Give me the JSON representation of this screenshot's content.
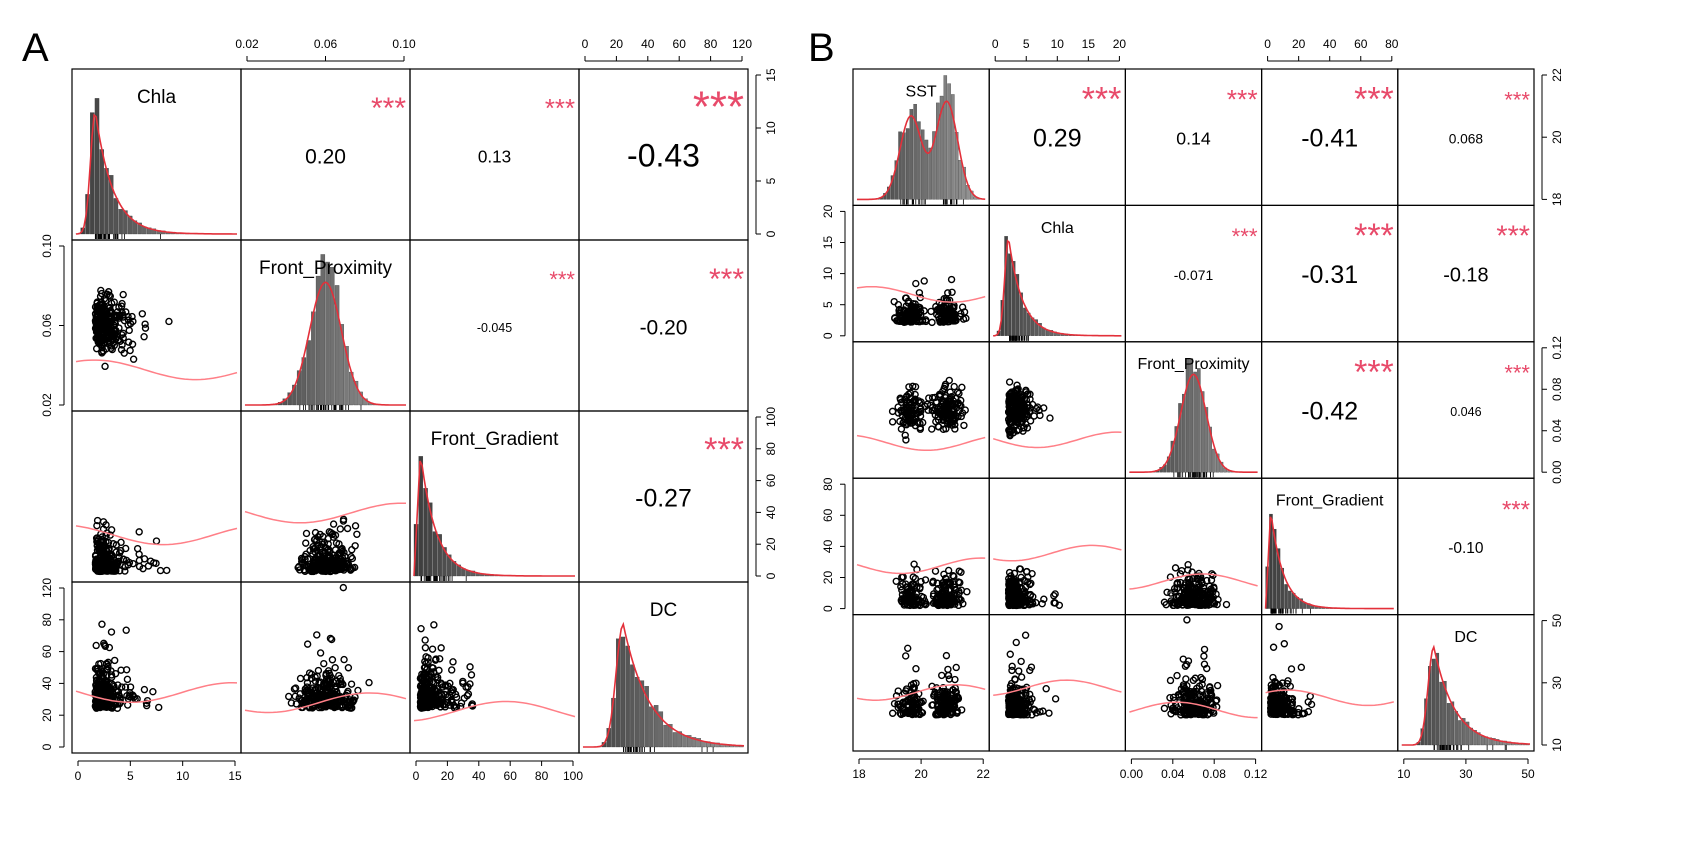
{
  "panels": [
    {
      "letter": "A",
      "variables": [
        "Chla",
        "Front_Proximity",
        "Front_Gradient",
        "DC"
      ],
      "correlations": [
        {
          "row": 0,
          "col": 1,
          "value": "0.20",
          "stars": "***"
        },
        {
          "row": 0,
          "col": 2,
          "value": "0.13",
          "stars": "***"
        },
        {
          "row": 0,
          "col": 3,
          "value": "-0.43",
          "stars": "***"
        },
        {
          "row": 1,
          "col": 2,
          "value": "-0.045",
          "stars": "***"
        },
        {
          "row": 1,
          "col": 3,
          "value": "-0.20",
          "stars": "***"
        },
        {
          "row": 2,
          "col": 3,
          "value": "-0.27",
          "stars": "***"
        }
      ],
      "top_axes": [
        {
          "col": 1,
          "ticks": [
            "0.02",
            "0.06",
            "0.10"
          ]
        },
        {
          "col": 3,
          "ticks": [
            "0",
            "20",
            "40",
            "60",
            "80",
            "120"
          ]
        }
      ],
      "bottom_axes": [
        {
          "col": 0,
          "ticks": [
            "0",
            "5",
            "10",
            "15"
          ]
        },
        {
          "col": 2,
          "ticks": [
            "0",
            "20",
            "40",
            "60",
            "80",
            "100"
          ]
        }
      ],
      "left_axes": [
        {
          "row": 1,
          "ticks": [
            "0.02",
            "0.06",
            "0.10"
          ]
        },
        {
          "row": 3,
          "ticks": [
            "0",
            "20",
            "40",
            "60",
            "80",
            "120"
          ]
        }
      ],
      "right_axes": [
        {
          "row": 0,
          "ticks": [
            "0",
            "5",
            "10",
            "15"
          ]
        },
        {
          "row": 2,
          "ticks": [
            "0",
            "20",
            "40",
            "60",
            "80",
            "100"
          ]
        }
      ]
    },
    {
      "letter": "B",
      "variables": [
        "SST",
        "Chla",
        "Front_Proximity",
        "Front_Gradient",
        "DC"
      ],
      "correlations": [
        {
          "row": 0,
          "col": 1,
          "value": "0.29",
          "stars": "***"
        },
        {
          "row": 0,
          "col": 2,
          "value": "0.14",
          "stars": "***"
        },
        {
          "row": 0,
          "col": 3,
          "value": "-0.41",
          "stars": "***"
        },
        {
          "row": 0,
          "col": 4,
          "value": "0.068",
          "stars": "***"
        },
        {
          "row": 1,
          "col": 2,
          "value": "-0.071",
          "stars": "***"
        },
        {
          "row": 1,
          "col": 3,
          "value": "-0.31",
          "stars": "***"
        },
        {
          "row": 1,
          "col": 4,
          "value": "-0.18",
          "stars": "***"
        },
        {
          "row": 2,
          "col": 3,
          "value": "-0.42",
          "stars": "***"
        },
        {
          "row": 2,
          "col": 4,
          "value": "0.046",
          "stars": "***"
        },
        {
          "row": 3,
          "col": 4,
          "value": "-0.10",
          "stars": "***"
        }
      ],
      "top_axes": [
        {
          "col": 1,
          "ticks": [
            "0",
            "5",
            "10",
            "15",
            "20"
          ]
        },
        {
          "col": 3,
          "ticks": [
            "0",
            "20",
            "40",
            "60",
            "80"
          ]
        }
      ],
      "bottom_axes": [
        {
          "col": 0,
          "ticks": [
            "18",
            "20",
            "22"
          ]
        },
        {
          "col": 2,
          "ticks": [
            "0.00",
            "0.04",
            "0.08",
            "0.12"
          ]
        },
        {
          "col": 4,
          "ticks": [
            "10",
            "30",
            "50"
          ]
        }
      ],
      "left_axes": [
        {
          "row": 1,
          "ticks": [
            "0",
            "5",
            "10",
            "15",
            "20"
          ]
        },
        {
          "row": 3,
          "ticks": [
            "0",
            "20",
            "40",
            "60",
            "80"
          ]
        }
      ],
      "right_axes": [
        {
          "row": 0,
          "ticks": [
            "18",
            "20",
            "22"
          ]
        },
        {
          "row": 2,
          "ticks": [
            "0.00",
            "0.04",
            "0.08",
            "0.12"
          ]
        },
        {
          "row": 4,
          "ticks": [
            "10",
            "30",
            "50"
          ]
        }
      ]
    }
  ],
  "colors": {
    "points": "#000000",
    "histogram_fill": "#555555",
    "density_line": "#e3303a",
    "smooth_line": "#ff7f87",
    "stars": "#e84a6a"
  },
  "chart_data": [
    {
      "type": "scatter",
      "panel": "A",
      "variables": [
        "Chla",
        "Front_Proximity",
        "Front_Gradient",
        "DC"
      ],
      "ranges": {
        "Chla": [
          0,
          16
        ],
        "Front_Proximity": [
          0.003,
          0.115
        ],
        "Front_Gradient": [
          0,
          100
        ],
        "DC": [
          0,
          130
        ]
      },
      "correlations": {
        "Chla|Front_Proximity": 0.2,
        "Chla|Front_Gradient": 0.13,
        "Chla|DC": -0.43,
        "Front_Proximity|Front_Gradient": -0.045,
        "Front_Proximity|DC": -0.2,
        "Front_Gradient|DC": -0.27
      },
      "significance": "***",
      "grid": false
    },
    {
      "type": "scatter",
      "panel": "B",
      "variables": [
        "SST",
        "Chla",
        "Front_Proximity",
        "Front_Gradient",
        "DC"
      ],
      "ranges": {
        "SST": [
          17.6,
          24
        ],
        "Chla": [
          0,
          23
        ],
        "Front_Proximity": [
          0,
          0.135
        ],
        "Front_Gradient": [
          0,
          85
        ],
        "DC": [
          2,
          60
        ]
      },
      "correlations": {
        "SST|Chla": 0.29,
        "SST|Front_Proximity": 0.14,
        "SST|Front_Gradient": -0.41,
        "SST|DC": 0.068,
        "Chla|Front_Proximity": -0.071,
        "Chla|Front_Gradient": -0.31,
        "Chla|DC": -0.18,
        "Front_Proximity|Front_Gradient": -0.42,
        "Front_Proximity|DC": 0.046,
        "Front_Gradient|DC": -0.1
      },
      "significance": "***",
      "grid": false
    }
  ]
}
